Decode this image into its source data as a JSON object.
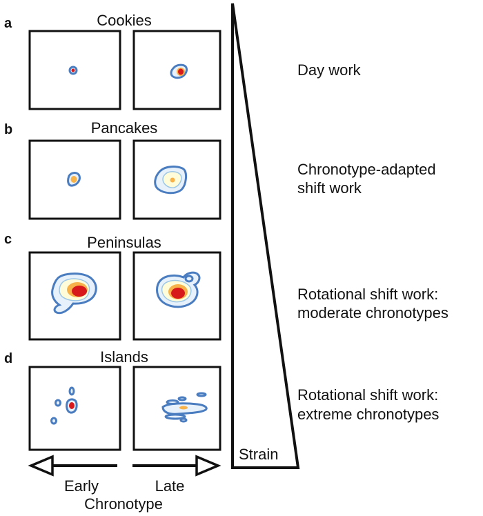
{
  "panels": [
    {
      "letter": "a",
      "title": "Cookies",
      "description": [
        "Day work"
      ]
    },
    {
      "letter": "b",
      "title": "Pancakes",
      "description": [
        "Chronotype-adapted",
        "shift work"
      ]
    },
    {
      "letter": "c",
      "title": "Peninsulas",
      "description": [
        "Rotational shift work:",
        "moderate chronotypes"
      ]
    },
    {
      "letter": "d",
      "title": "Islands",
      "description": [
        "Rotational shift work:",
        "extreme chronotypes"
      ]
    }
  ],
  "strain_label": "Strain",
  "axis": {
    "early": "Early",
    "late": "Late",
    "title": "Chronotype"
  },
  "colors": {
    "outline": "#4a7cc0",
    "light_fill": "#e7f1fb",
    "yellow": "#fffcd9",
    "orange": "#f7b24a",
    "red": "#d7191c"
  }
}
